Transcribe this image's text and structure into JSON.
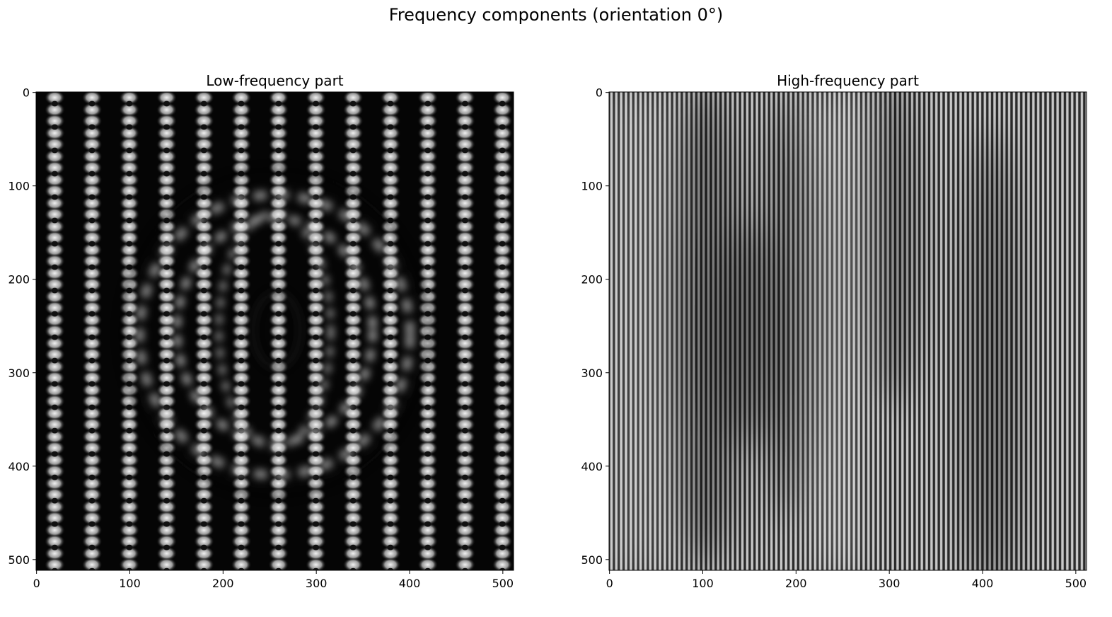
{
  "figure": {
    "title": "Frequency components (orientation 0°)"
  },
  "chart_data": [
    {
      "type": "heatmap",
      "title": "Low-frequency part",
      "colormap": "gray",
      "xlim": [
        0,
        511
      ],
      "ylim": [
        511,
        0
      ],
      "xticks": [
        0,
        100,
        200,
        300,
        400,
        500
      ],
      "yticks": [
        0,
        100,
        200,
        300,
        400,
        500
      ],
      "xtick_labels": [
        "0",
        "100",
        "200",
        "300",
        "400",
        "500"
      ],
      "ytick_labels": [
        "0",
        "100",
        "200",
        "300",
        "400",
        "500"
      ],
      "pattern": "bright blob columns (period ~40 px) with checker-like dots along y (period ~25 px); ring/elliptical disturbance centered near (256, 256)"
    },
    {
      "type": "heatmap",
      "title": "High-frequency part",
      "colormap": "gray",
      "xlim": [
        0,
        511
      ],
      "ylim": [
        511,
        0
      ],
      "xticks": [
        0,
        100,
        200,
        300,
        400,
        500
      ],
      "yticks": [
        0,
        100,
        200,
        300,
        400,
        500
      ],
      "xtick_labels": [
        "0",
        "100",
        "200",
        "300",
        "400",
        "500"
      ],
      "ytick_labels": [
        "0",
        "100",
        "200",
        "300",
        "400",
        "500"
      ],
      "pattern": "fine vertical stripes (period ~5 px) with soft darker patches around x≈100, 200, 300, 410"
    }
  ]
}
